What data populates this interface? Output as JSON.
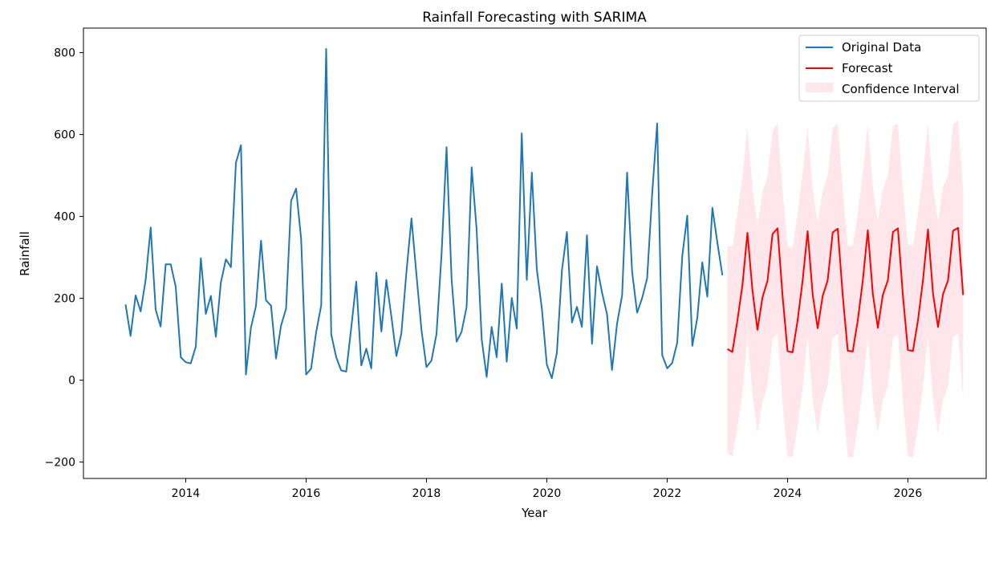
{
  "chart_data": {
    "type": "line",
    "title": "Rainfall Forecasting with SARIMA",
    "xlabel": "Year",
    "ylabel": "Rainfall",
    "xlim": [
      2012.3,
      2027.3
    ],
    "ylim": [
      -240,
      860
    ],
    "x_ticks": [
      2014,
      2016,
      2018,
      2020,
      2022,
      2024,
      2026
    ],
    "x_tick_labels": [
      "2014",
      "2016",
      "2018",
      "2020",
      "2022",
      "2024",
      "2026"
    ],
    "y_ticks": [
      -200,
      0,
      200,
      400,
      600,
      800
    ],
    "y_tick_labels": [
      "−200",
      "0",
      "200",
      "400",
      "600",
      "800"
    ],
    "grid": false,
    "legend_position": "top-right",
    "legend": [
      {
        "label": "Original Data",
        "kind": "line",
        "color": "#1f77b4"
      },
      {
        "label": "Forecast",
        "kind": "line",
        "color": "#ff0000"
      },
      {
        "label": "Confidence Interval",
        "kind": "patch",
        "color": "#ffc0cb"
      }
    ],
    "original": {
      "name": "Original Data",
      "color": "#1f77b4",
      "start_year": 2013,
      "values": [
        185,
        108,
        207,
        168,
        245,
        373,
        172,
        131,
        283,
        283,
        228,
        56,
        44,
        41,
        82,
        298,
        162,
        206,
        106,
        238,
        295,
        276,
        531,
        574,
        14,
        128,
        181,
        341,
        195,
        182,
        53,
        133,
        175,
        438,
        468,
        345,
        14,
        28,
        117,
        183,
        809,
        112,
        56,
        24,
        21,
        129,
        241,
        36,
        77,
        29,
        263,
        119,
        245,
        155,
        59,
        114,
        264,
        395,
        258,
        122,
        32,
        48,
        113,
        308,
        569,
        246,
        94,
        118,
        179,
        520,
        368,
        100,
        8,
        130,
        56,
        236,
        45,
        201,
        126,
        603,
        245,
        507,
        271,
        175,
        38,
        5,
        67,
        268,
        362,
        141,
        179,
        130,
        354,
        89,
        278,
        214,
        161,
        25,
        138,
        207,
        507,
        264,
        165,
        200,
        249,
        456,
        627,
        61,
        29,
        42,
        92,
        304,
        402,
        84,
        152,
        288,
        204,
        421,
        336,
        256
      ]
    },
    "forecast": {
      "name": "Forecast",
      "color": "#ff0000",
      "start_year": 2023,
      "values": [
        76,
        69,
        146,
        233,
        360,
        218,
        123,
        202,
        243,
        357,
        371,
        205,
        71,
        68,
        146,
        244,
        364,
        209,
        127,
        205,
        244,
        361,
        370,
        206,
        72,
        70,
        146,
        244,
        366,
        210,
        128,
        208,
        244,
        362,
        371,
        205,
        74,
        71,
        146,
        245,
        368,
        211,
        130,
        210,
        244,
        365,
        372,
        208
      ]
    },
    "confidence_interval": {
      "name": "Confidence Interval",
      "color": "#ffc0cb",
      "lower": [
        -178,
        -187,
        -116,
        -30,
        104,
        -36,
        -131,
        -55,
        -14,
        101,
        114,
        -56,
        -186,
        -188,
        -114,
        -17,
        106,
        -49,
        -131,
        -53,
        -14,
        104,
        113,
        -52,
        -187,
        -188,
        -114,
        -17,
        107,
        -49,
        -130,
        -49,
        -15,
        103,
        113,
        -52,
        -186,
        -188,
        -114,
        -17,
        108,
        -48,
        -130,
        -49,
        -15,
        107,
        113,
        -49
      ],
      "upper": [
        329,
        326,
        408,
        498,
        616,
        470,
        379,
        459,
        499,
        608,
        627,
        462,
        327,
        323,
        406,
        505,
        620,
        466,
        384,
        462,
        500,
        616,
        627,
        462,
        328,
        327,
        406,
        505,
        625,
        469,
        387,
        464,
        500,
        620,
        627,
        463,
        330,
        328,
        406,
        507,
        628,
        472,
        390,
        471,
        500,
        625,
        634,
        465
      ]
    }
  }
}
